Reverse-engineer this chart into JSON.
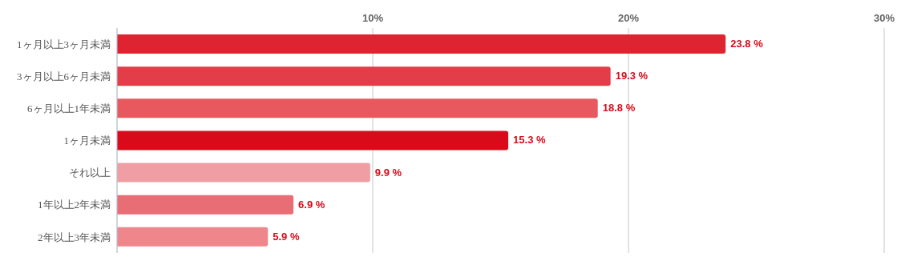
{
  "chart_data": {
    "type": "bar",
    "orientation": "horizontal",
    "categories": [
      "1ヶ月以上3ヶ月未満",
      "3ヶ月以上6ヶ月未満",
      "6ヶ月以上1年未満",
      "1ヶ月未満",
      "それ以上",
      "1年以上2年未満",
      "2年以上3年未満"
    ],
    "values": [
      23.8,
      19.3,
      18.8,
      15.3,
      9.9,
      6.9,
      5.9
    ],
    "value_labels": [
      "23.8 %",
      "19.3 %",
      "18.8 %",
      "15.3 %",
      "9.9 %",
      "6.9 %",
      "5.9 %"
    ],
    "colors": [
      "#de2431",
      "#e23d48",
      "#e7595f",
      "#d90b1a",
      "#f09ea3",
      "#e96d75",
      "#ee868c"
    ],
    "xlim": [
      0,
      30
    ],
    "xticks": [
      {
        "value": 10,
        "label": "10%"
      },
      {
        "value": 20,
        "label": "20%"
      },
      {
        "value": 30,
        "label": "30%"
      }
    ],
    "grid": "x"
  }
}
